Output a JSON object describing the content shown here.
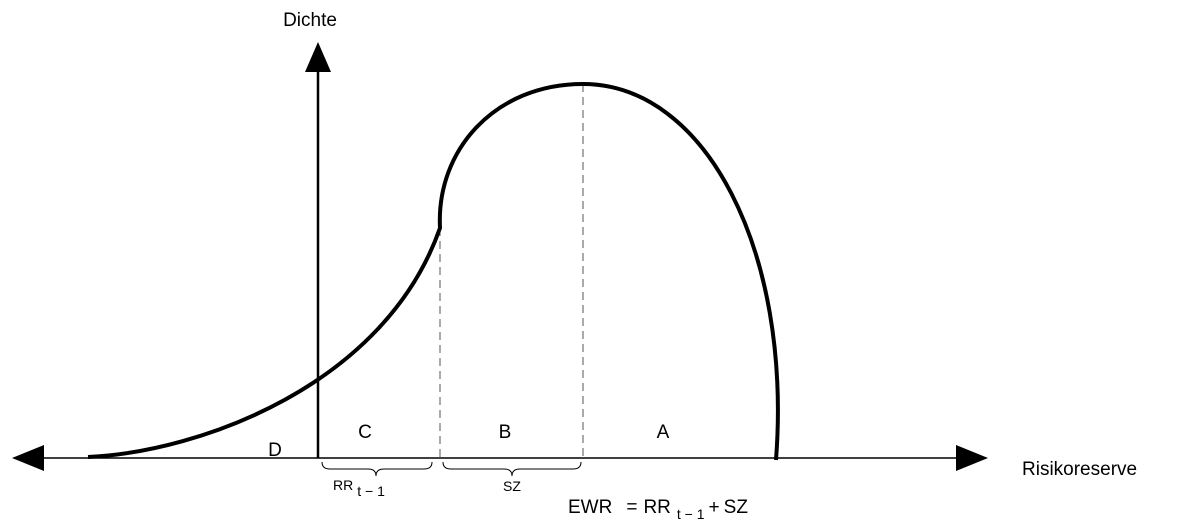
{
  "axes": {
    "y_label": "Dichte",
    "x_label": "Risikoreserve"
  },
  "regions": [
    {
      "label": "D"
    },
    {
      "label": "C"
    },
    {
      "label": "B"
    },
    {
      "label": "A"
    }
  ],
  "braces": [
    {
      "label": "RR",
      "sub": "t − 1"
    },
    {
      "label": "SZ"
    }
  ],
  "formula": {
    "lhs": "EWR",
    "eq": "=",
    "rr": "RR",
    "sub": "t − 1",
    "plus": "+",
    "sz": "SZ"
  }
}
